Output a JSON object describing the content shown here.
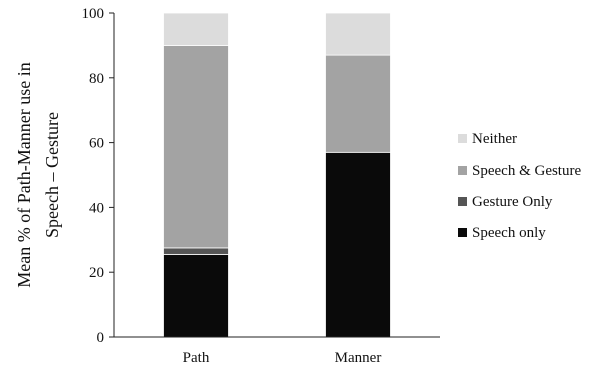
{
  "chart_data": {
    "type": "bar",
    "stacked": true,
    "categories": [
      "Path",
      "Manner"
    ],
    "ylabel_lines": [
      "Mean % of Path-Manner use in",
      "Speech – Gesture"
    ],
    "ylim": [
      0,
      100
    ],
    "yticks": [
      0,
      20,
      40,
      60,
      80,
      100
    ],
    "grid": false,
    "legend_position": "right",
    "series": [
      {
        "name": "Speech only",
        "values": [
          25.5,
          57
        ],
        "color": "#0a0a0a"
      },
      {
        "name": "Gesture Only",
        "values": [
          2,
          0
        ],
        "color": "#555555"
      },
      {
        "name": "Speech & Gesture",
        "values": [
          62.5,
          30
        ],
        "color": "#a3a3a3"
      },
      {
        "name": "Neither",
        "values": [
          10,
          13
        ],
        "color": "#dcdcdc"
      }
    ]
  }
}
